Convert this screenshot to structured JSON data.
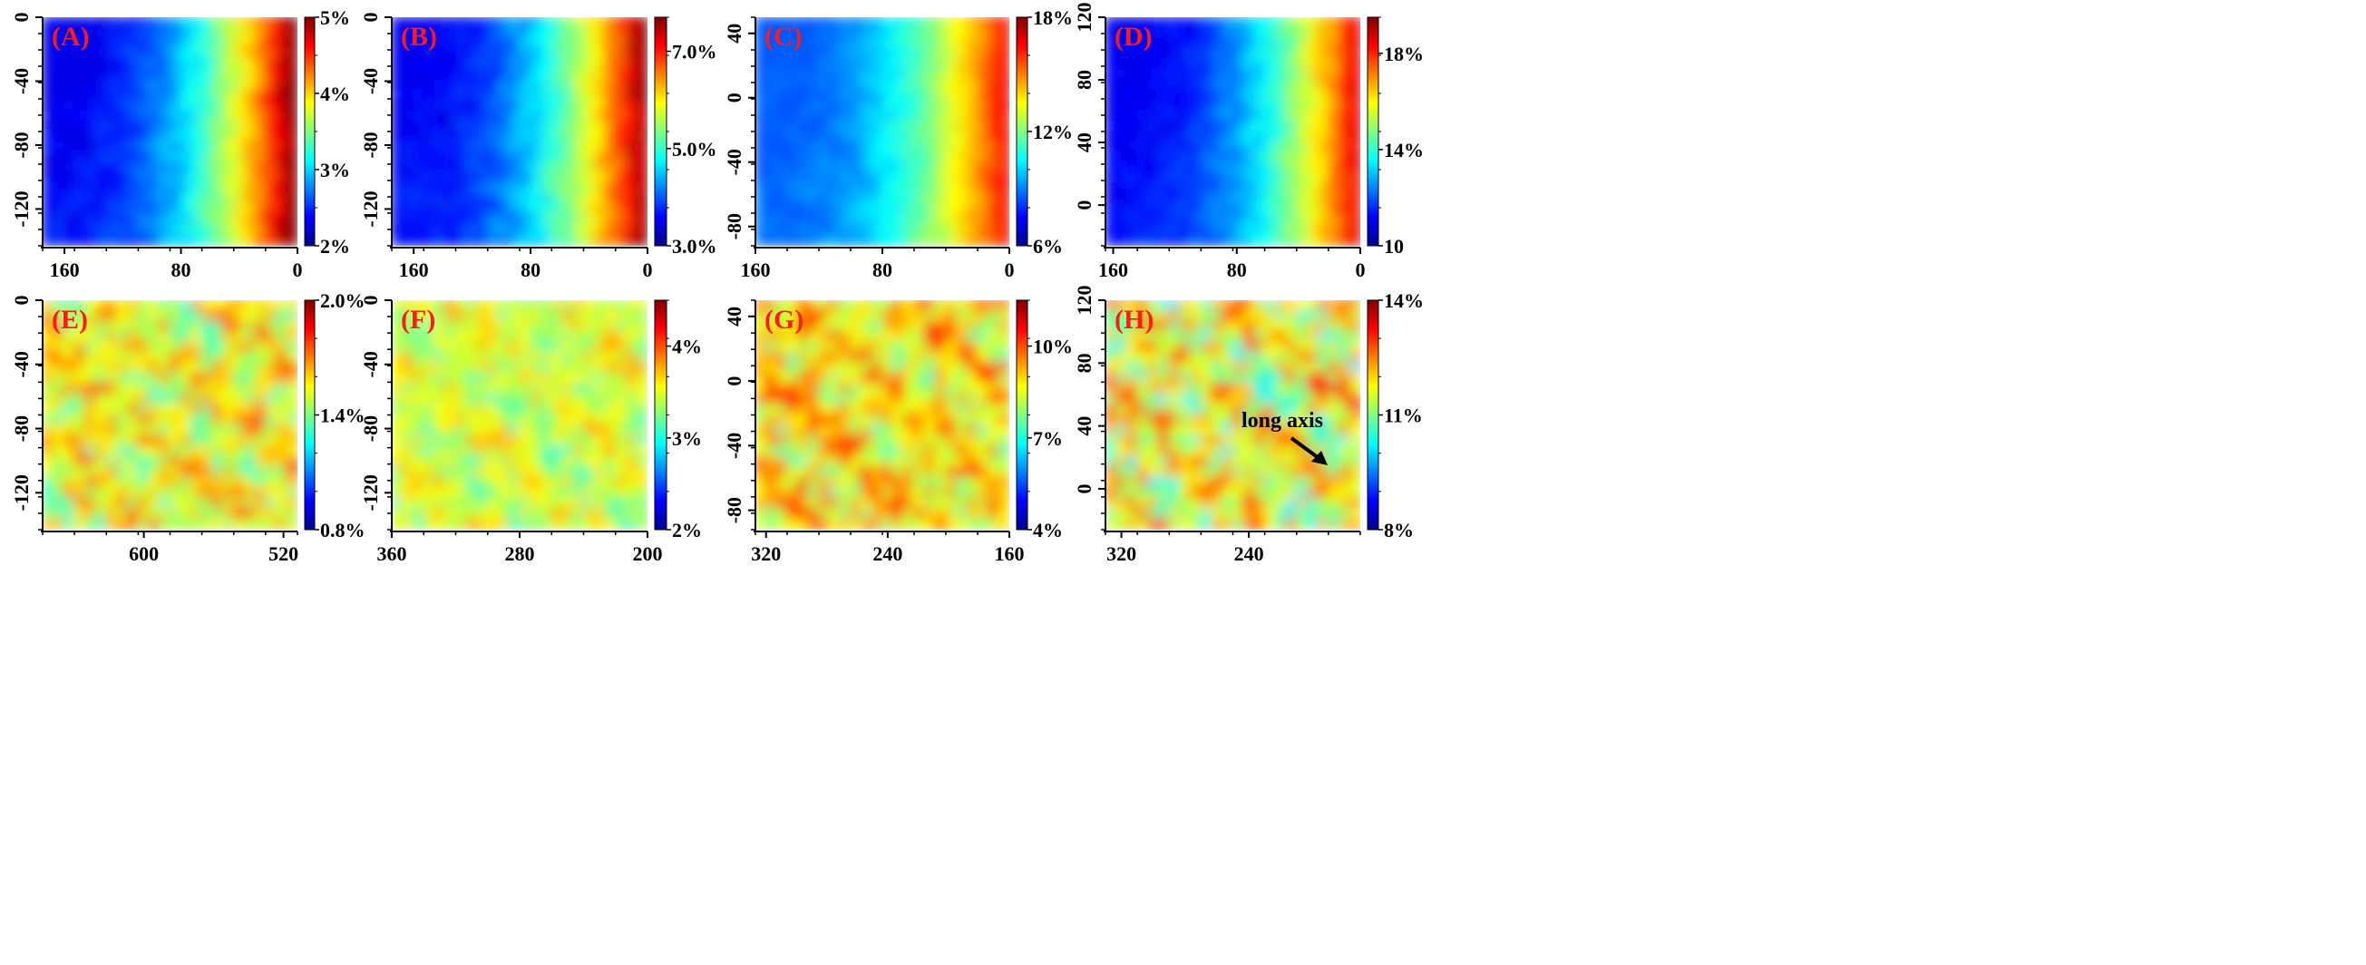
{
  "chart_data": [
    {
      "type": "heatmap",
      "label": "(A)",
      "xticks": [
        "160",
        "80",
        "0"
      ],
      "yticks": [
        "0",
        "-40",
        "-80",
        "-120"
      ],
      "xlim": [
        175,
        0
      ],
      "ylim": [
        -143,
        0
      ],
      "colorbar_ticks": [
        "5%",
        "4%",
        "3%",
        "2%"
      ],
      "colorbar_range": [
        2,
        5
      ],
      "pattern": "gradient",
      "field_range": [
        2.3,
        5.0
      ]
    },
    {
      "type": "heatmap",
      "label": "(B)",
      "xticks": [
        "160",
        "80",
        "0"
      ],
      "yticks": [
        "0",
        "-40",
        "-80",
        "-120"
      ],
      "xlim": [
        175,
        0
      ],
      "ylim": [
        -143,
        0
      ],
      "colorbar_ticks": [
        "7.0%",
        "5.0%",
        "3.0%"
      ],
      "colorbar_range": [
        3,
        7.7
      ],
      "pattern": "gradient",
      "field_range": [
        3.5,
        7.6
      ]
    },
    {
      "type": "heatmap",
      "label": "(C)",
      "xticks": [
        "160",
        "80",
        "0"
      ],
      "yticks": [
        "40",
        "0",
        "-40",
        "-80"
      ],
      "xlim": [
        160,
        0
      ],
      "ylim": [
        -92,
        50
      ],
      "colorbar_ticks": [
        "18%",
        "12%",
        "6%"
      ],
      "colorbar_range": [
        6,
        18
      ],
      "pattern": "gradient",
      "field_range": [
        8.5,
        16.5
      ]
    },
    {
      "type": "heatmap",
      "label": "(D)",
      "xticks": [
        "160",
        "80",
        "0"
      ],
      "yticks": [
        "120",
        "80",
        "40",
        "0"
      ],
      "xlim": [
        165,
        0
      ],
      "ylim": [
        -26,
        120
      ],
      "colorbar_ticks": [
        "18%",
        "14%",
        "10"
      ],
      "colorbar_range": [
        10,
        19.5
      ],
      "pattern": "gradient",
      "field_range": [
        11,
        18.5
      ]
    },
    {
      "type": "heatmap",
      "label": "(E)",
      "xticks": [
        "600",
        "520"
      ],
      "yticks": [
        "0",
        "-40",
        "-80",
        "-120"
      ],
      "xlim": [
        658,
        512
      ],
      "ylim": [
        -143,
        0
      ],
      "colorbar_ticks": [
        "2.0%",
        "1.4%",
        "0.8%"
      ],
      "colorbar_range": [
        0.8,
        2.0
      ],
      "pattern": "uniform",
      "field_range": [
        1.25,
        1.78
      ]
    },
    {
      "type": "heatmap",
      "label": "(F)",
      "xticks": [
        "360",
        "280",
        "200"
      ],
      "yticks": [
        "0",
        "-40",
        "-80",
        "-120"
      ],
      "xlim": [
        360,
        200
      ],
      "ylim": [
        -143,
        0
      ],
      "colorbar_ticks": [
        "4%",
        "3%",
        "2%"
      ],
      "colorbar_range": [
        2,
        4.5
      ],
      "pattern": "uniform",
      "field_range": [
        3.0,
        3.8
      ]
    },
    {
      "type": "heatmap",
      "label": "(G)",
      "xticks": [
        "320",
        "240",
        "160"
      ],
      "yticks": [
        "40",
        "0",
        "-40",
        "-80"
      ],
      "xlim": [
        327,
        160
      ],
      "ylim": [
        -92,
        50
      ],
      "colorbar_ticks": [
        "10%",
        "7%",
        "4%"
      ],
      "colorbar_range": [
        4,
        11.5
      ],
      "pattern": "uniform",
      "field_range": [
        7.0,
        10.5
      ]
    },
    {
      "type": "heatmap",
      "label": "(H)",
      "xticks": [
        "320",
        "240"
      ],
      "yticks": [
        "120",
        "80",
        "40",
        "0"
      ],
      "xlim": [
        330,
        170
      ],
      "ylim": [
        -26,
        120
      ],
      "colorbar_ticks": [
        "14%",
        "11%",
        "8%"
      ],
      "colorbar_range": [
        8,
        14
      ],
      "pattern": "uniform",
      "field_range": [
        9.8,
        13.2
      ],
      "annotation": "long axis"
    }
  ]
}
